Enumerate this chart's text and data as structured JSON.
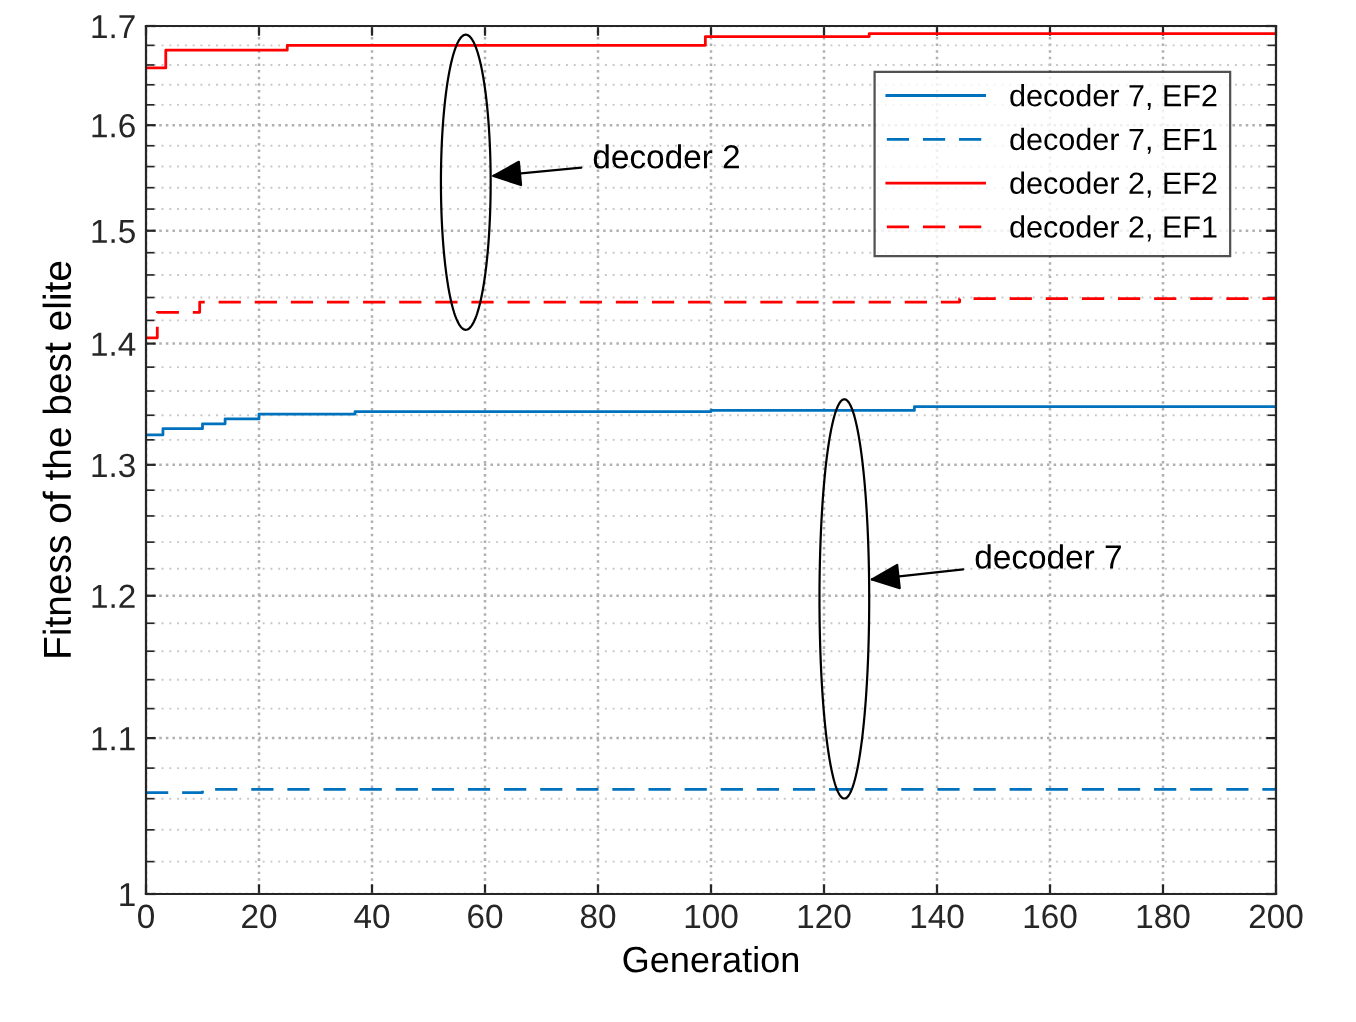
{
  "chart_data": {
    "type": "step",
    "xlabel": "Generation",
    "ylabel": "Fitness of the best elite",
    "series": [
      {
        "name": "decoder 7, EF2",
        "color": "#0072bd",
        "line_style": "solid",
        "x": [
          0,
          3,
          10,
          14,
          20,
          37,
          100,
          136,
          200
        ],
        "values": [
          1.324,
          1.329,
          1.333,
          1.337,
          1.341,
          1.343,
          1.344,
          1.347,
          1.347
        ]
      },
      {
        "name": "decoder 7, EF1",
        "color": "#0072bd",
        "line_style": "dashed",
        "x": [
          0,
          10,
          200
        ],
        "values": [
          1.064,
          1.066,
          1.066
        ]
      },
      {
        "name": "decoder 2, EF2",
        "color": "#ff0000",
        "line_style": "solid",
        "x": [
          0,
          3.5,
          25,
          99,
          128,
          200
        ],
        "values": [
          1.657,
          1.675,
          1.68,
          1.689,
          1.692,
          1.692
        ]
      },
      {
        "name": "decoder 2, EF1",
        "color": "#ff0000",
        "line_style": "dashed",
        "x": [
          0,
          2,
          9.5,
          144,
          200
        ],
        "values": [
          1.405,
          1.427,
          1.436,
          1.439,
          1.439
        ]
      }
    ],
    "annotations": [
      "decoder 2",
      "decoder 7"
    ],
    "xlim": [
      0,
      200
    ],
    "xticks": [
      0,
      20,
      40,
      60,
      80,
      100,
      120,
      140,
      160,
      180,
      200
    ],
    "ylim": [
      1,
      1.7
    ],
    "yticks": [
      1,
      1.1,
      1.2,
      1.3,
      1.4,
      1.5,
      1.6,
      1.7
    ],
    "log": "y",
    "grid": true,
    "legend": "top right"
  }
}
